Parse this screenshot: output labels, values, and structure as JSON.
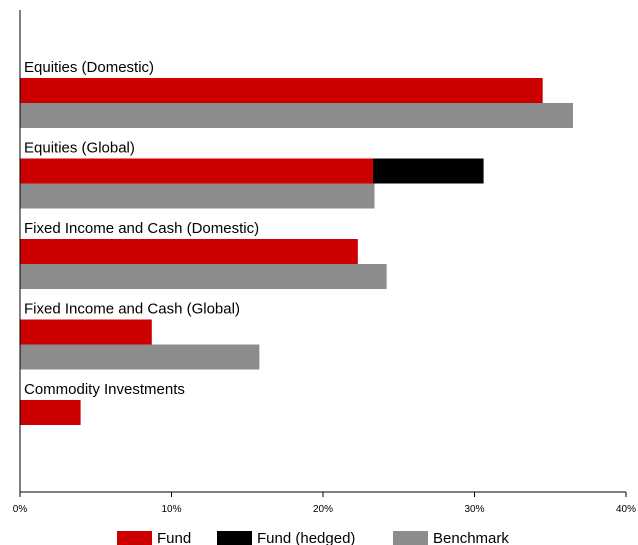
{
  "chart_data": {
    "type": "bar",
    "orientation": "horizontal",
    "stacked_series": [
      "Fund",
      "Fund (hedged)"
    ],
    "categories": [
      "Equities (Domestic)",
      "Equities (Global)",
      "Fixed Income and Cash (Domestic)",
      "Fixed Income and Cash (Global)",
      "Commodity Investments"
    ],
    "series": [
      {
        "name": "Fund",
        "color": "#cc0000",
        "values": [
          34.5,
          23.3,
          22.3,
          8.7,
          4.0
        ]
      },
      {
        "name": "Fund (hedged)",
        "color": "#000000",
        "values": [
          0,
          7.3,
          0,
          0,
          0
        ]
      },
      {
        "name": "Benchmark",
        "color": "#8c8c8c",
        "values": [
          36.5,
          23.4,
          24.2,
          15.8,
          0
        ]
      }
    ],
    "xlim": [
      0,
      40
    ],
    "xticks": [
      "0%",
      "10%",
      "20%",
      "30%",
      "40%"
    ],
    "legend_position": "bottom",
    "grid": false
  }
}
